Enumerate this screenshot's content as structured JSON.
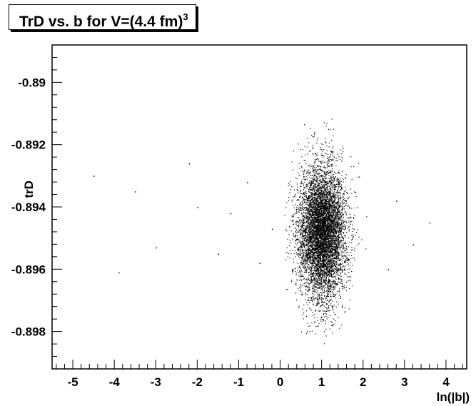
{
  "chart_data": {
    "type": "scatter",
    "title": {
      "main": "TrD vs. b for V=(4.4 fm)",
      "superscript": "3"
    },
    "xlabel": "ln(|b|)",
    "ylabel": "trD",
    "xlim": [
      -5.5,
      4.5
    ],
    "ylim": [
      -0.8992,
      -0.8888
    ],
    "x_ticks": [
      -5,
      -4,
      -3,
      -2,
      -1,
      0,
      1,
      2,
      3,
      4
    ],
    "y_ticks": [
      -0.89,
      -0.892,
      -0.894,
      -0.896,
      -0.898
    ],
    "x_tick_labels": [
      "-5",
      "-4",
      "-3",
      "-2",
      "-1",
      "0",
      "1",
      "2",
      "3",
      "4"
    ],
    "y_tick_labels": [
      "-0.89",
      "-0.892",
      "-0.894",
      "-0.896",
      "-0.898"
    ],
    "grid": false,
    "marker_color": "#000000",
    "series": [
      {
        "cluster": {
          "x_center": 1.0,
          "x_spread": 0.28,
          "y_center": -0.8948,
          "y_spread": 0.00105,
          "x_range": [
            0.1,
            2.3
          ],
          "y_range": [
            -0.8986,
            -0.8894
          ]
        },
        "outliers": [
          {
            "x": -4.5,
            "y": -0.893
          },
          {
            "x": -3.9,
            "y": -0.8961
          },
          {
            "x": -3.5,
            "y": -0.8935
          },
          {
            "x": -3.0,
            "y": -0.8953
          },
          {
            "x": -2.2,
            "y": -0.8926
          },
          {
            "x": -2.0,
            "y": -0.894
          },
          {
            "x": -1.5,
            "y": -0.8955
          },
          {
            "x": -1.2,
            "y": -0.8942
          },
          {
            "x": -0.8,
            "y": -0.8932
          },
          {
            "x": -0.5,
            "y": -0.8958
          },
          {
            "x": -0.2,
            "y": -0.8947
          },
          {
            "x": 2.6,
            "y": -0.896
          },
          {
            "x": 2.8,
            "y": -0.8938
          },
          {
            "x": 3.2,
            "y": -0.8952
          },
          {
            "x": 3.6,
            "y": -0.8945
          }
        ]
      }
    ]
  }
}
